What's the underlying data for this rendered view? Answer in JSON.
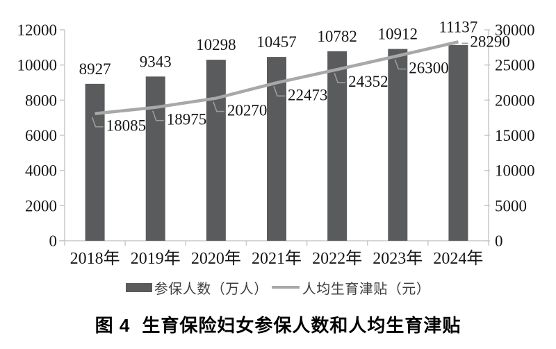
{
  "figure": {
    "caption_label": "图 4",
    "caption_title": "生育保险妇女参保人数和人均生育津贴"
  },
  "legend": {
    "bar_label": "参保人数（万人）",
    "line_label": "人均生育津贴（元）"
  },
  "colors": {
    "bar": "#595b5d",
    "line": "#a8a8a8",
    "leader": "#9d9d9d",
    "axis": "#c9c9c9",
    "text": "#161616"
  },
  "chart_data": {
    "type": "bar",
    "subtype": "combo-bar-line-dual-axis",
    "title": "图 4 生育保险妇女参保人数和人均生育津贴",
    "categories": [
      "2018年",
      "2019年",
      "2020年",
      "2021年",
      "2022年",
      "2023年",
      "2024年"
    ],
    "series": [
      {
        "name": "参保人数（万人）",
        "type": "bar",
        "axis": "left",
        "values": [
          8927,
          9343,
          10298,
          10457,
          10782,
          10912,
          11137
        ]
      },
      {
        "name": "人均生育津贴（元）",
        "type": "line",
        "axis": "right",
        "values": [
          18085,
          18975,
          20270,
          22473,
          24352,
          26300,
          28290
        ]
      }
    ],
    "left_axis": {
      "ticks": [
        0,
        2000,
        4000,
        6000,
        8000,
        10000,
        12000
      ],
      "min": 0,
      "max": 12000
    },
    "right_axis": {
      "ticks": [
        0,
        5000,
        10000,
        15000,
        20000,
        25000,
        30000
      ],
      "min": 0,
      "max": 30000
    },
    "grid": false,
    "legend_position": "bottom",
    "data_labels": true
  }
}
